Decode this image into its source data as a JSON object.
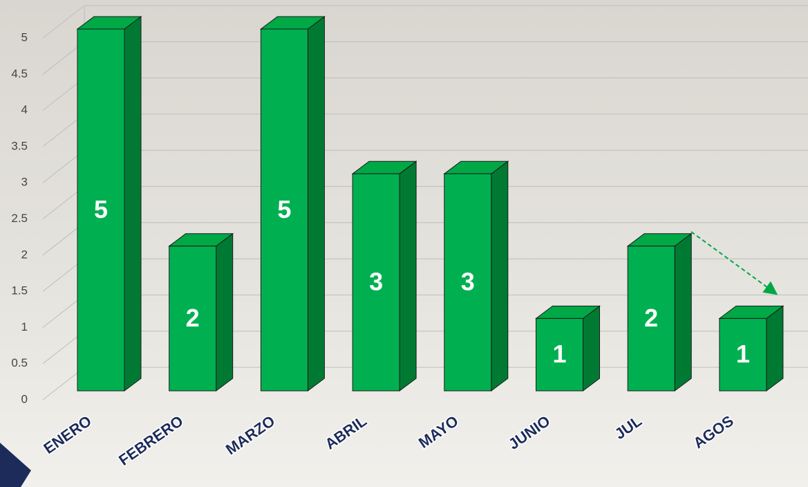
{
  "chart_data": {
    "type": "bar3d",
    "categories": [
      "ENERO",
      "FEBRERO",
      "MARZO",
      "ABRIL",
      "MAYO",
      "JUNIO",
      "JUL",
      "AGOS"
    ],
    "values": [
      5,
      2,
      5,
      3,
      3,
      1,
      2,
      1
    ],
    "color": "#00b050",
    "ylim": [
      0,
      5
    ],
    "yticks": [
      0,
      0.5,
      1,
      1.5,
      2,
      2.5,
      3,
      3.5,
      4,
      4.5,
      5
    ],
    "grid": true
  }
}
